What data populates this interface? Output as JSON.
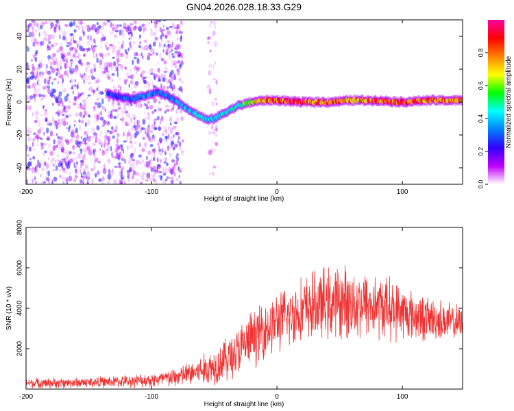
{
  "figure_title": "GN04.2026.028.18.33.G29",
  "chart_data": [
    {
      "type": "heatmap",
      "name": "spectrogram",
      "title": "GN04.2026.028.18.33.G29",
      "xlabel": "Height of straight line (km)",
      "ylabel": "Frequency (Hz)",
      "xlim": [
        -200,
        148
      ],
      "ylim": [
        -50,
        50
      ],
      "x_ticks": [
        -200,
        -100,
        0,
        100
      ],
      "y_ticks": [
        -40,
        -20,
        0,
        20,
        40
      ],
      "x_tick_labels": [
        "-200",
        "-100",
        "0",
        "100"
      ],
      "y_tick_labels": [
        "-40",
        "-20",
        "0",
        "20",
        "40"
      ],
      "colorbar": {
        "label": "Normalized spectral amplitude",
        "range": [
          0,
          1
        ],
        "ticks": [
          0.0,
          0.2,
          0.4,
          0.6,
          0.8
        ],
        "tick_labels": [
          "0.0",
          "0.2",
          "0.4",
          "0.6",
          "0.8"
        ],
        "colors": [
          "#ffffff",
          "#c000ff",
          "#3000ff",
          "#0080ff",
          "#00ffff",
          "#00ff00",
          "#ffff00",
          "#ff8000",
          "#ff0000",
          "#ff00a0"
        ]
      },
      "noise_regions": [
        {
          "x_range": [
            -200,
            -75
          ],
          "amplitude": 0.45
        },
        {
          "x_range": [
            -55,
            -48
          ],
          "amplitude": 0.15
        }
      ],
      "signal_track": {
        "x": [
          -135,
          -125,
          -115,
          -105,
          -95,
          -85,
          -75,
          -65,
          -55,
          -50,
          -45,
          -38,
          -30,
          -20,
          -10,
          0,
          20,
          40,
          60,
          80,
          100,
          120,
          148
        ],
        "freq": [
          5,
          3,
          2,
          4,
          6,
          3,
          -2,
          -7,
          -11,
          -10,
          -8,
          -5,
          -2,
          0,
          1,
          1,
          0,
          0,
          1,
          1,
          0,
          1,
          1
        ],
        "amplitude": [
          0.3,
          0.3,
          0.35,
          0.4,
          0.35,
          0.35,
          0.4,
          0.45,
          0.45,
          0.45,
          0.45,
          0.45,
          0.5,
          0.7,
          0.8,
          0.9,
          0.9,
          0.85,
          0.8,
          0.85,
          0.9,
          0.85,
          0.8
        ]
      }
    },
    {
      "type": "line",
      "name": "snr",
      "xlabel": "Height of straight line (km)",
      "ylabel": "SNR (10 * v/v)",
      "xlim": [
        -200,
        148
      ],
      "ylim": [
        0,
        8000
      ],
      "x_ticks": [
        -200,
        -100,
        0,
        100
      ],
      "y_ticks": [
        2000,
        4000,
        6000,
        8000
      ],
      "x_tick_labels": [
        "-200",
        "-100",
        "0",
        "100"
      ],
      "y_tick_labels": [
        "2000",
        "4000",
        "6000",
        "8000"
      ],
      "series": [
        {
          "name": "SNR",
          "color": "#ee3333",
          "x": [
            -200,
            -180,
            -160,
            -140,
            -120,
            -100,
            -90,
            -80,
            -70,
            -60,
            -50,
            -40,
            -30,
            -20,
            -10,
            0,
            10,
            20,
            30,
            40,
            50,
            60,
            70,
            80,
            90,
            100,
            110,
            120,
            130,
            140,
            148
          ],
          "mean": [
            300,
            300,
            320,
            350,
            380,
            450,
            500,
            600,
            750,
            900,
            1150,
            1500,
            1900,
            2500,
            3000,
            3300,
            3600,
            3900,
            4100,
            4200,
            4300,
            4300,
            4200,
            4100,
            4000,
            3800,
            3600,
            3500,
            3400,
            3300,
            3200
          ],
          "spread": [
            300,
            300,
            300,
            320,
            350,
            420,
            500,
            600,
            700,
            900,
            1100,
            1300,
            1500,
            1600,
            1700,
            1700,
            1800,
            1900,
            2000,
            2100,
            2100,
            2100,
            2000,
            1900,
            1800,
            1600,
            1400,
            1300,
            1200,
            1100,
            1000
          ]
        }
      ]
    }
  ]
}
